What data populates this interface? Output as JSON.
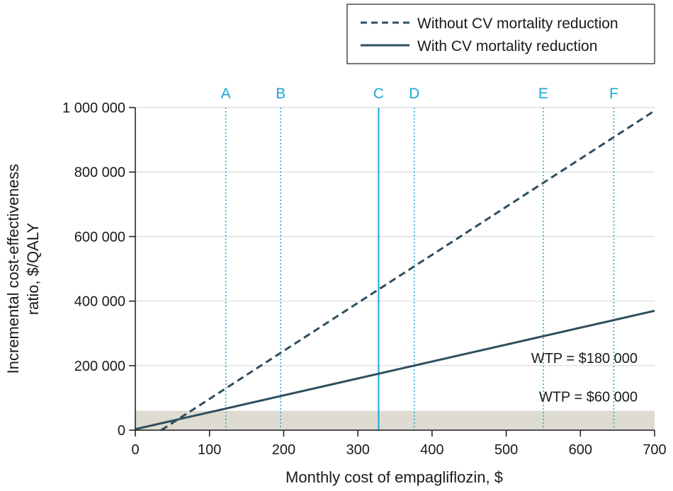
{
  "colors": {
    "series": "#2f4e5e",
    "marker": "#1aa6d8",
    "grid": "#d9d9d9",
    "band": "#dedbd2",
    "axis": "#1a1a1a"
  },
  "legend": {
    "items": [
      {
        "label": "Without CV mortality reduction",
        "style": "dashed"
      },
      {
        "label": "With CV mortality reduction",
        "style": "solid"
      }
    ]
  },
  "chart_data": {
    "type": "line",
    "xlabel": "Monthly cost of empagliflozin, $",
    "ylabel_lines": [
      "Incremental cost-effectiveness",
      "ratio, $/QALY"
    ],
    "xlim": [
      0,
      700
    ],
    "ylim": [
      0,
      1000000
    ],
    "x_ticks": [
      0,
      100,
      200,
      300,
      400,
      500,
      600,
      700
    ],
    "x_tick_labels": [
      "0",
      "100",
      "200",
      "300",
      "400",
      "500",
      "600",
      "700"
    ],
    "y_ticks": [
      0,
      200000,
      400000,
      600000,
      800000,
      1000000
    ],
    "y_tick_labels": [
      "0",
      "200 000",
      "400 000",
      "600 000",
      "800 000",
      "1 000 000"
    ],
    "grid": "horizontal",
    "legend_position": "top-right",
    "series": [
      {
        "name": "Without CV mortality reduction",
        "style": "dashed",
        "x": [
          35,
          700
        ],
        "y": [
          0,
          990000
        ]
      },
      {
        "name": "With CV mortality reduction",
        "style": "solid",
        "x": [
          0,
          700
        ],
        "y": [
          3000,
          370000
        ]
      }
    ],
    "markers": [
      {
        "label": "A",
        "x": 122,
        "style": "dotted"
      },
      {
        "label": "B",
        "x": 196,
        "style": "dotted"
      },
      {
        "label": "C",
        "x": 328,
        "style": "solid"
      },
      {
        "label": "D",
        "x": 376,
        "style": "dotted"
      },
      {
        "label": "E",
        "x": 550,
        "style": "dotted"
      },
      {
        "label": "F",
        "x": 645,
        "style": "dotted"
      }
    ],
    "band": {
      "y0": 0,
      "y1": 60000
    },
    "annotations": [
      {
        "text": "WTP = $180 000",
        "x": 700,
        "y": 180000
      },
      {
        "text": "WTP = $60 000",
        "x": 700,
        "y": 60000
      }
    ]
  }
}
